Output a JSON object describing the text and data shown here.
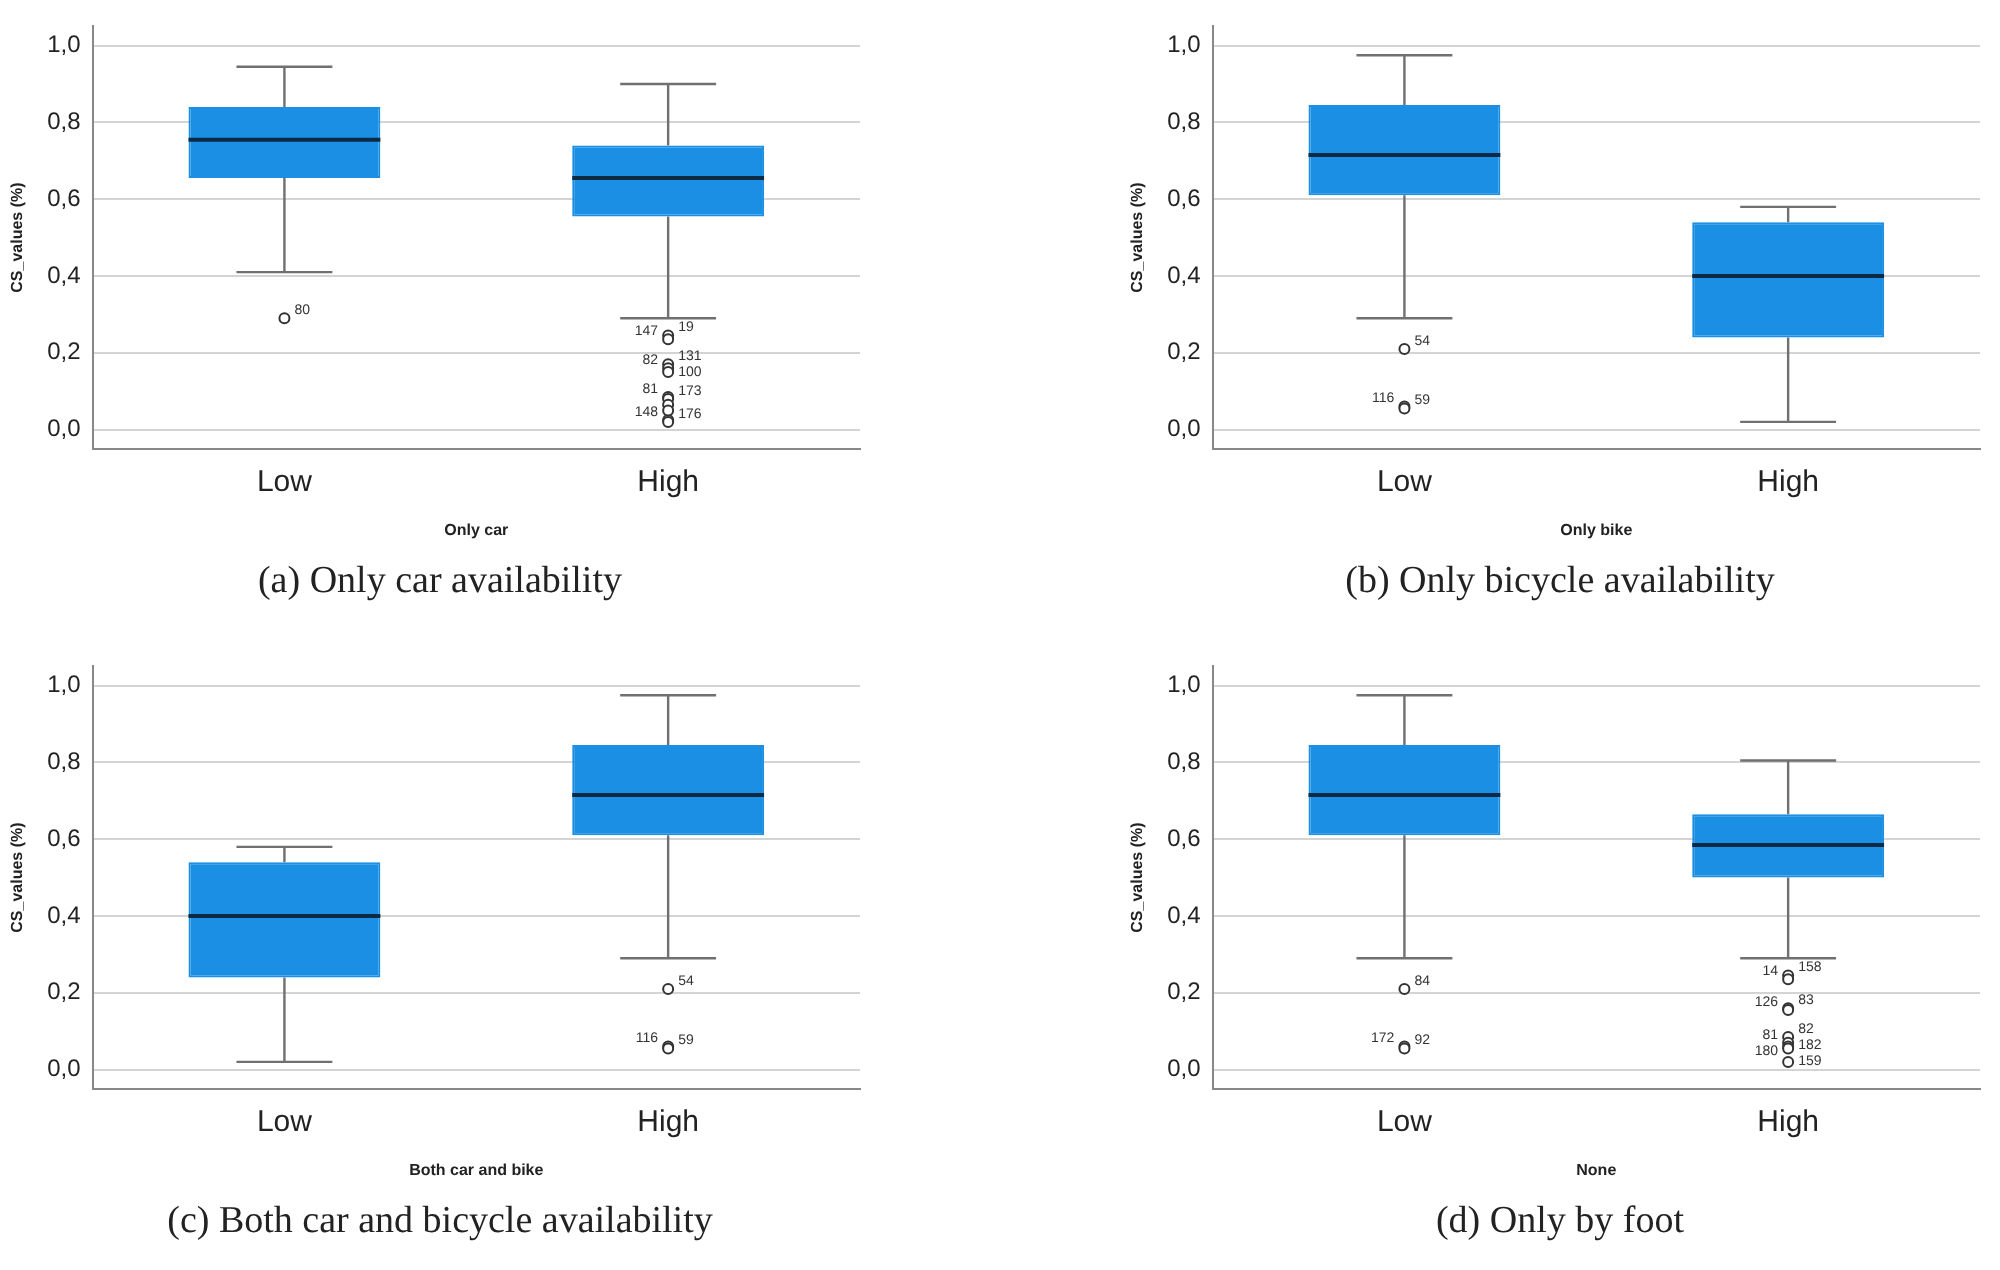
{
  "chart_data": [
    {
      "type": "box",
      "xlabel": "Only car",
      "ylabel": "CS_values (%)",
      "categories": [
        "Low",
        "High"
      ],
      "color": "#1a8fe3",
      "marker": "circle",
      "grid": "y",
      "ylim": [
        -0.05,
        1.05
      ],
      "yticks": [
        {
          "value": 0,
          "label": "0,0"
        },
        {
          "value": 0.2,
          "label": "0,2"
        },
        {
          "value": 0.4,
          "label": "0,4"
        },
        {
          "value": 0.6,
          "label": "0,6"
        },
        {
          "value": 0.8,
          "label": "0,8"
        },
        {
          "value": 1,
          "label": "1,0"
        }
      ],
      "boxes": [
        {
          "low": 0.41,
          "q1": 0.655,
          "median": 0.755,
          "q3": 0.84,
          "high": 0.945,
          "outliers": [
            0.29
          ]
        },
        {
          "low": 0.29,
          "q1": 0.555,
          "median": 0.655,
          "q3": 0.74,
          "high": 0.9,
          "outliers": [
            0.245,
            0.235,
            0.17,
            0.16,
            0.15,
            0.085,
            0.08,
            0.025,
            0.02,
            0.065,
            0.05
          ]
        }
      ],
      "annotations": [
        "80",
        "19",
        "147",
        "131",
        "82",
        "100",
        "81",
        "173",
        "148",
        "176",
        "(a) Only car availability"
      ]
    },
    {
      "type": "box",
      "xlabel": "Only bike",
      "ylabel": "CS_values (%)",
      "categories": [
        "Low",
        "High"
      ],
      "color": "#1a8fe3",
      "marker": "circle",
      "grid": "y",
      "ylim": [
        -0.05,
        1.05
      ],
      "yticks": [
        {
          "value": 0,
          "label": "0,0"
        },
        {
          "value": 0.2,
          "label": "0,2"
        },
        {
          "value": 0.4,
          "label": "0,4"
        },
        {
          "value": 0.6,
          "label": "0,6"
        },
        {
          "value": 0.8,
          "label": "0,8"
        },
        {
          "value": 1,
          "label": "1,0"
        }
      ],
      "boxes": [
        {
          "low": 0.29,
          "q1": 0.61,
          "median": 0.715,
          "q3": 0.845,
          "high": 0.975,
          "outliers": [
            0.21,
            0.06,
            0.055
          ]
        },
        {
          "low": 0.02,
          "q1": 0.24,
          "median": 0.4,
          "q3": 0.54,
          "high": 0.58
        }
      ],
      "annotations": [
        "54",
        "116",
        "59",
        "(b) Only bicycle availability"
      ]
    },
    {
      "type": "box",
      "xlabel": "Both car and bike",
      "ylabel": "CS_values (%)",
      "categories": [
        "Low",
        "High"
      ],
      "color": "#1a8fe3",
      "marker": "circle",
      "grid": "y",
      "ylim": [
        -0.05,
        1.05
      ],
      "yticks": [
        {
          "value": 0,
          "label": "0,0"
        },
        {
          "value": 0.2,
          "label": "0,2"
        },
        {
          "value": 0.4,
          "label": "0,4"
        },
        {
          "value": 0.6,
          "label": "0,6"
        },
        {
          "value": 0.8,
          "label": "0,8"
        },
        {
          "value": 1,
          "label": "1,0"
        }
      ],
      "boxes": [
        {
          "low": 0.02,
          "q1": 0.24,
          "median": 0.4,
          "q3": 0.54,
          "high": 0.58
        },
        {
          "low": 0.29,
          "q1": 0.61,
          "median": 0.715,
          "q3": 0.845,
          "high": 0.975,
          "outliers": [
            0.21,
            0.06,
            0.055
          ]
        }
      ],
      "annotations": [
        "54",
        "116",
        "59",
        "(c) Both car and bicycle availability"
      ]
    },
    {
      "type": "box",
      "xlabel": "None",
      "ylabel": "CS_values (%)",
      "categories": [
        "Low",
        "High"
      ],
      "color": "#1a8fe3",
      "marker": "circle",
      "grid": "y",
      "ylim": [
        -0.05,
        1.05
      ],
      "yticks": [
        {
          "value": 0,
          "label": "0,0"
        },
        {
          "value": 0.2,
          "label": "0,2"
        },
        {
          "value": 0.4,
          "label": "0,4"
        },
        {
          "value": 0.6,
          "label": "0,6"
        },
        {
          "value": 0.8,
          "label": "0,8"
        },
        {
          "value": 1,
          "label": "1,0"
        }
      ],
      "boxes": [
        {
          "low": 0.29,
          "q1": 0.61,
          "median": 0.715,
          "q3": 0.845,
          "high": 0.975,
          "outliers": [
            0.21,
            0.06,
            0.055
          ]
        },
        {
          "low": 0.29,
          "q1": 0.5,
          "median": 0.585,
          "q3": 0.665,
          "high": 0.805,
          "outliers": [
            0.245,
            0.235,
            0.16,
            0.155,
            0.085,
            0.07,
            0.06,
            0.055,
            0.02
          ]
        }
      ],
      "annotations": [
        "84",
        "172",
        "92",
        "158",
        "14",
        "83",
        "126",
        "82",
        "81",
        "182",
        "180",
        "159",
        "(d) Only by foot"
      ]
    }
  ]
}
